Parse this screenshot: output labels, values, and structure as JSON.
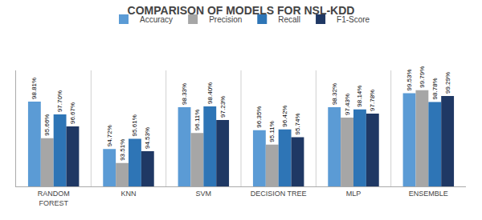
{
  "chart_data": {
    "type": "bar",
    "title": "COMPARISON OF MODELS FOR NSL-KDD",
    "categories": [
      "RANDOM\nFOREST",
      "KNN",
      "SVM",
      "DECISION TREE",
      "MLP",
      "ENSEMBLE"
    ],
    "series": [
      {
        "name": "Accuracy",
        "color": "#5b9bd5",
        "values": [
          98.81,
          94.72,
          98.33,
          96.35,
          98.32,
          99.53
        ],
        "value_labels": [
          "98.81%",
          "94.72%",
          "98.33%",
          "96.35%",
          "98.32%",
          "99.53%"
        ]
      },
      {
        "name": "Precision",
        "color": "#a6a6a6",
        "values": [
          95.66,
          93.51,
          96.11,
          95.11,
          97.43,
          99.79
        ],
        "value_labels": [
          "95.66%",
          "93.51%",
          "96.11%",
          "95.11%",
          "97.43%",
          "99.79%"
        ]
      },
      {
        "name": "Recall",
        "color": "#2e75b6",
        "values": [
          97.7,
          95.61,
          98.4,
          96.42,
          98.14,
          98.78
        ],
        "value_labels": [
          "97.70%",
          "95.61%",
          "98.40%",
          "96.42%",
          "98.14%",
          "98.78%"
        ]
      },
      {
        "name": "F1-Score",
        "color": "#1f3864",
        "values": [
          96.67,
          94.53,
          97.23,
          95.74,
          97.78,
          99.29
        ],
        "value_labels": [
          "96.67%",
          "94.53%",
          "97.23%",
          "95.74%",
          "97.78%",
          "99.29%"
        ]
      }
    ],
    "ylim": [
      91.5,
      101.5
    ],
    "data_labels": true,
    "tick_labels": "x",
    "grid": false,
    "legend": "top"
  }
}
